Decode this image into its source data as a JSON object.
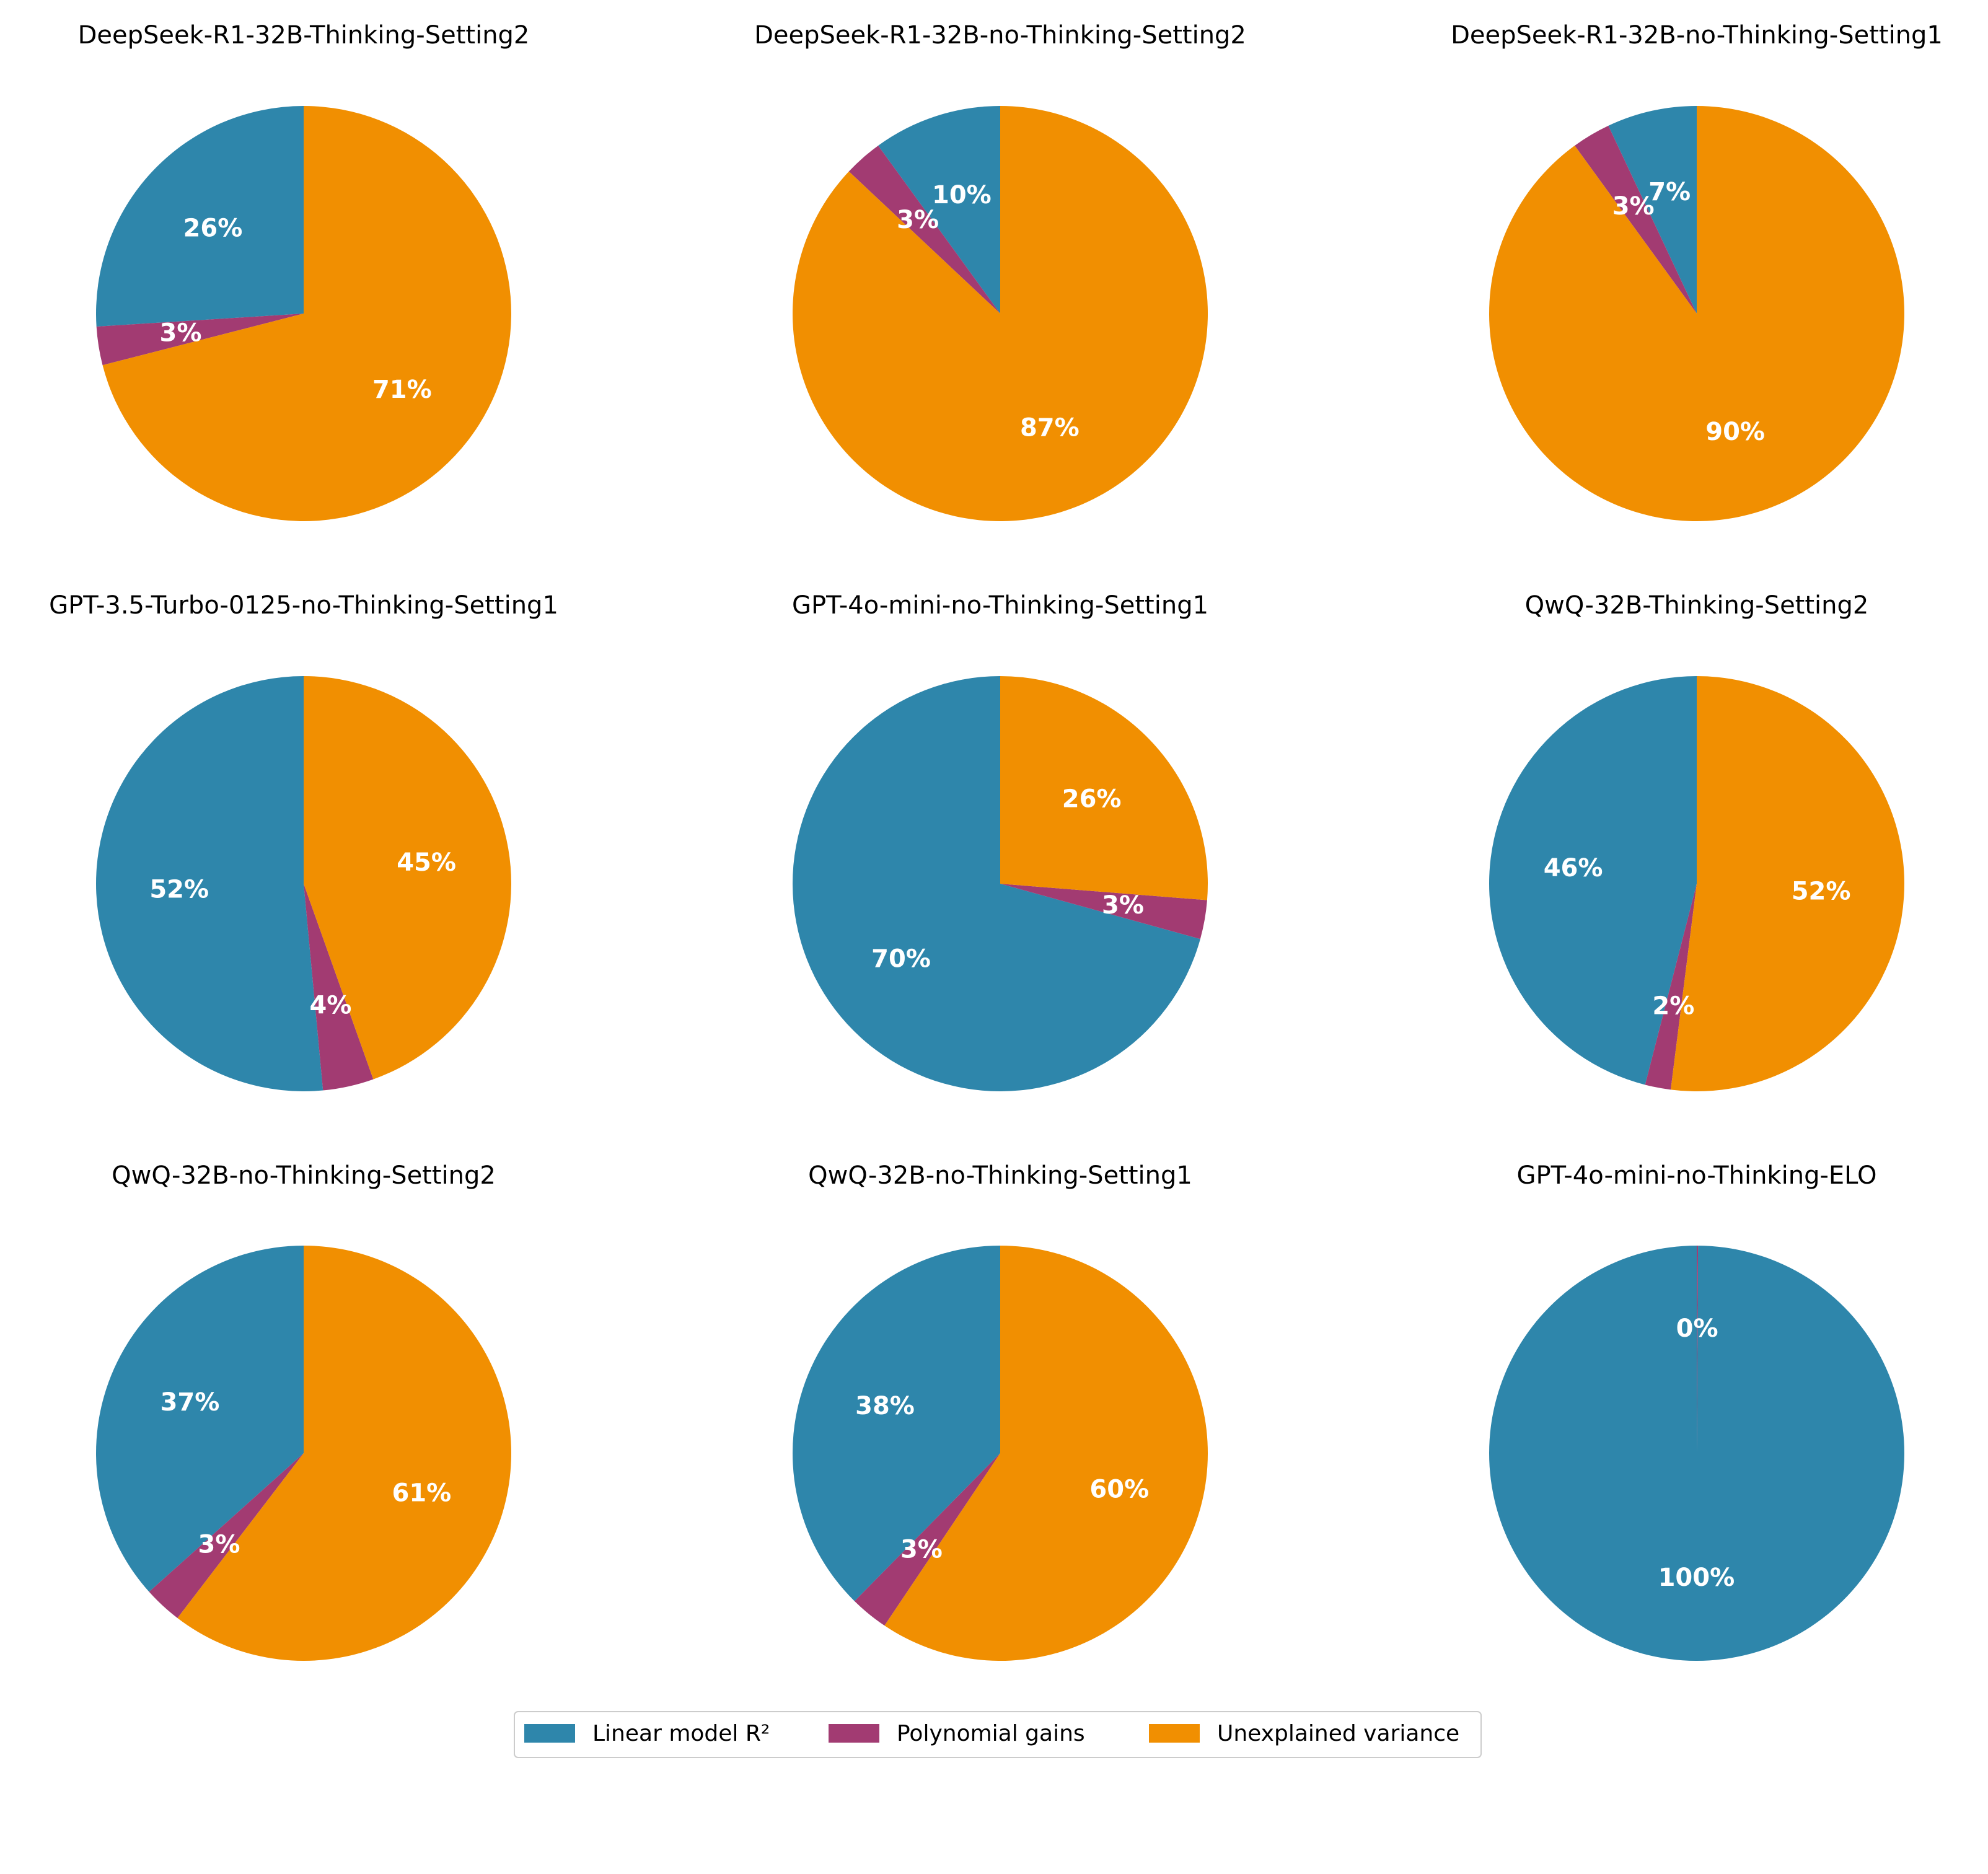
{
  "colors": {
    "linear": "#2E86AB",
    "poly": "#A23B72",
    "unexplained": "#F18F01"
  },
  "legend": {
    "items": [
      {
        "label": "Linear model R²",
        "color_key": "linear"
      },
      {
        "label": "Polynomial gains",
        "color_key": "poly"
      },
      {
        "label": "Unexplained variance",
        "color_key": "unexplained"
      }
    ]
  },
  "chart_data": [
    {
      "type": "pie",
      "title": "DeepSeek-R1-32B-Thinking-Setting2",
      "categories": [
        "Linear model R²",
        "Polynomial gains",
        "Unexplained variance"
      ],
      "values": [
        26,
        3,
        71
      ],
      "labels": [
        "26%",
        "3%",
        "71%"
      ]
    },
    {
      "type": "pie",
      "title": "DeepSeek-R1-32B-no-Thinking-Setting2",
      "categories": [
        "Linear model R²",
        "Polynomial gains",
        "Unexplained variance"
      ],
      "values": [
        10,
        3,
        87
      ],
      "labels": [
        "10%",
        "3%",
        "87%"
      ]
    },
    {
      "type": "pie",
      "title": "DeepSeek-R1-32B-no-Thinking-Setting1",
      "categories": [
        "Linear model R²",
        "Polynomial gains",
        "Unexplained variance"
      ],
      "values": [
        7,
        3,
        90
      ],
      "labels": [
        "7%",
        "3%",
        "90%"
      ]
    },
    {
      "type": "pie",
      "title": "GPT-3.5-Turbo-0125-no-Thinking-Setting1",
      "categories": [
        "Linear model R²",
        "Polynomial gains",
        "Unexplained variance"
      ],
      "values": [
        52,
        4,
        45
      ],
      "labels": [
        "52%",
        "4%",
        "45%"
      ]
    },
    {
      "type": "pie",
      "title": "GPT-4o-mini-no-Thinking-Setting1",
      "categories": [
        "Linear model R²",
        "Polynomial gains",
        "Unexplained variance"
      ],
      "values": [
        70,
        3,
        26
      ],
      "labels": [
        "70%",
        "3%",
        "26%"
      ]
    },
    {
      "type": "pie",
      "title": "QwQ-32B-Thinking-Setting2",
      "categories": [
        "Linear model R²",
        "Polynomial gains",
        "Unexplained variance"
      ],
      "values": [
        46,
        2,
        52
      ],
      "labels": [
        "46%",
        "2%",
        "52%"
      ]
    },
    {
      "type": "pie",
      "title": "QwQ-32B-no-Thinking-Setting2",
      "categories": [
        "Linear model R²",
        "Polynomial gains",
        "Unexplained variance"
      ],
      "values": [
        37,
        3,
        61
      ],
      "labels": [
        "37%",
        "3%",
        "61%"
      ]
    },
    {
      "type": "pie",
      "title": "QwQ-32B-no-Thinking-Setting1",
      "categories": [
        "Linear model R²",
        "Polynomial gains",
        "Unexplained variance"
      ],
      "values": [
        38,
        3,
        60
      ],
      "labels": [
        "38%",
        "3%",
        "60%"
      ]
    },
    {
      "type": "pie",
      "title": "GPT-4o-mini-no-Thinking-ELO",
      "categories": [
        "Linear model R²",
        "Polynomial gains",
        "Unexplained variance"
      ],
      "values": [
        100,
        0.1,
        0
      ],
      "labels": [
        "100%",
        "0%",
        ""
      ]
    }
  ]
}
